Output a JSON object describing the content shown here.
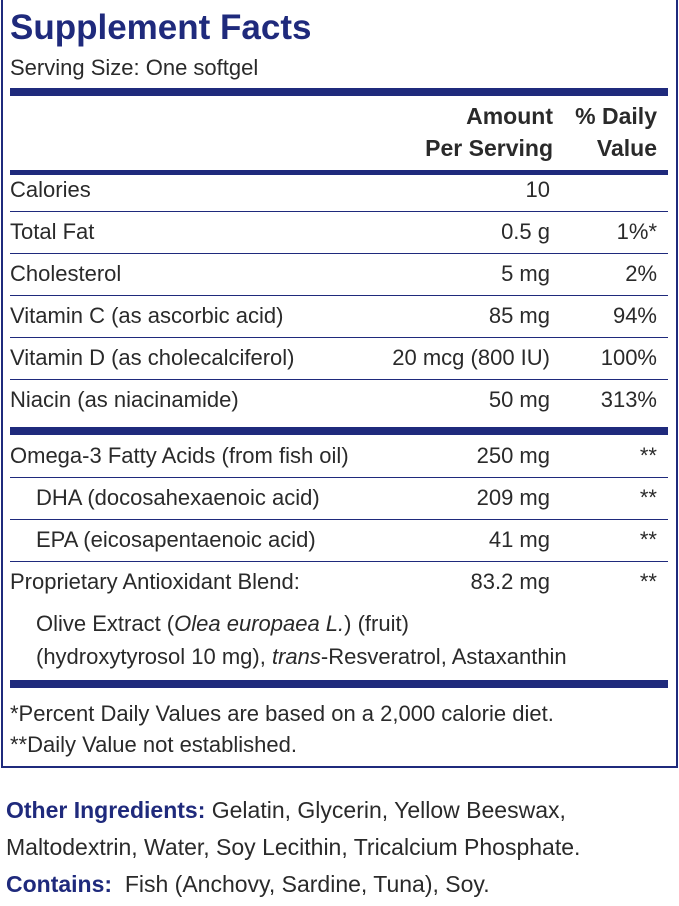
{
  "title": "Supplement Facts",
  "serving_size": "Serving Size: One softgel",
  "header": {
    "amount": [
      "Amount",
      "Per Serving"
    ],
    "daily_value": [
      "% Daily",
      "Value"
    ]
  },
  "nutrients": [
    {
      "name": "Calories",
      "amount": "10"
    },
    {
      "name": "Total Fat",
      "amount": "0.5 g",
      "dv": "1%*"
    },
    {
      "name": "Cholesterol",
      "amount": "5 mg",
      "dv": "2%"
    },
    {
      "name": "Vitamin C (as ascorbic acid)",
      "amount": "85 mg",
      "dv": "94%"
    },
    {
      "name": "Vitamin D (as cholecalciferol)",
      "amount": "20 mcg (800 IU)",
      "dv": "100%"
    },
    {
      "name": "Niacin (as niacinamide)",
      "amount": "50 mg",
      "dv": "313%"
    }
  ],
  "omega3": {
    "name": "Omega-3 Fatty Acids (from fish oil)",
    "amount": "250 mg",
    "dv": "**",
    "components": [
      {
        "name": "DHA (docosahexaenoic acid)",
        "amount": "209 mg",
        "dv": "**"
      },
      {
        "name": "EPA (eicosapentaenoic acid)",
        "amount": "41 mg",
        "dv": "**"
      }
    ]
  },
  "blend": {
    "name": "Proprietary Antioxidant Blend:",
    "amount": "83.2 mg",
    "dv": "**",
    "description": [
      [
        {
          "text": "Olive Extract ("
        },
        {
          "text": "Olea europaea L.",
          "italic": true
        },
        {
          "text": ") (fruit)"
        }
      ],
      [
        {
          "text": "(hydroxytyrosol 10 mg), "
        },
        {
          "text": "trans",
          "italic": true
        },
        {
          "text": "-Resveratrol, Astaxanthin"
        }
      ]
    ]
  },
  "footnotes": [
    "*Percent Daily Values are based on a 2,000 calorie diet.",
    "**Daily Value not established."
  ],
  "other_ingredients": {
    "label": "Other Ingredients:",
    "text": "Gelatin, Glycerin, Yellow Beeswax, Maltodextrin, Water, Soy Lecithin, Tricalcium Phosphate."
  },
  "contains": {
    "label": "Contains:",
    "text": "Fish (Anchovy, Sardine, Tuna), Soy."
  }
}
